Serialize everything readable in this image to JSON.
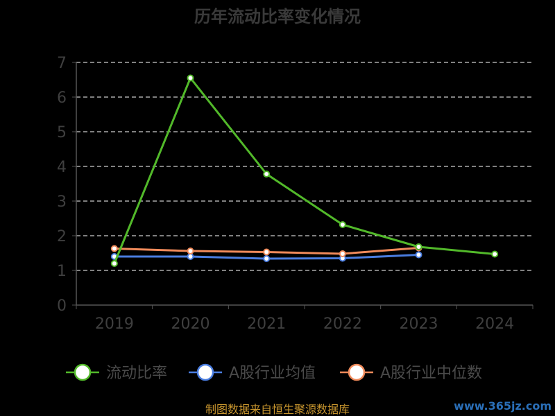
{
  "chart_data": {
    "type": "line",
    "title": "历年流动比率变化情况",
    "categories": [
      "2019",
      "2020",
      "2021",
      "2022",
      "2023",
      "2024"
    ],
    "ylim": [
      0,
      7
    ],
    "yticks": [
      "0",
      "1",
      "2",
      "3",
      "4",
      "5",
      "6",
      "7"
    ],
    "grid": true,
    "grid_style": "dashed",
    "legend_position": "bottom",
    "series": [
      {
        "name": "流动比率",
        "color": "#52b92a",
        "values": [
          1.2,
          6.55,
          3.78,
          2.32,
          1.68,
          1.47
        ]
      },
      {
        "name": "A股行业均值",
        "color": "#4a7de0",
        "values": [
          1.4,
          1.4,
          1.34,
          1.35,
          1.45,
          null
        ]
      },
      {
        "name": "A股行业中位数",
        "color": "#f08a5a",
        "values": [
          1.63,
          1.56,
          1.53,
          1.48,
          1.65,
          null
        ]
      }
    ]
  },
  "footer": {
    "source": "制图数据来自恒生聚源数据库",
    "watermark": "www.365jz.com"
  }
}
